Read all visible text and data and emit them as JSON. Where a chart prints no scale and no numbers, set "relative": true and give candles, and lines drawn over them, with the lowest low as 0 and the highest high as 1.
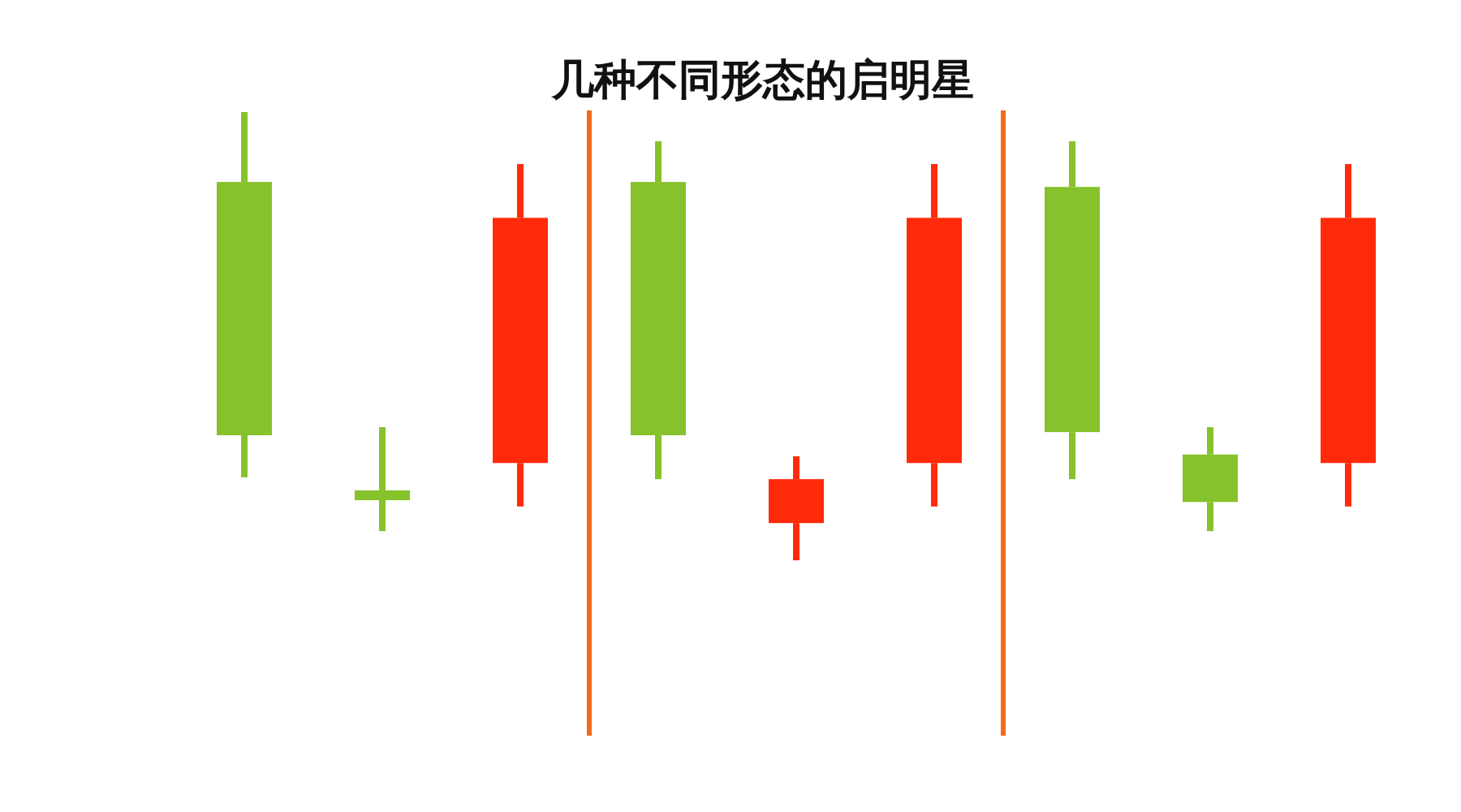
{
  "chart_data": {
    "type": "candlestick",
    "title": "几种不同形态的启明星",
    "relative": true,
    "categories": [
      null,
      null,
      null,
      null,
      null,
      null,
      null,
      null,
      null
    ],
    "ohlc": [
      [
        0.844,
        1,
        0.185,
        0.279
      ],
      [
        0.156,
        0.297,
        0.065,
        0.134
      ],
      [
        0.217,
        0.884,
        0.12,
        0.764
      ],
      [
        0.844,
        0.935,
        0.181,
        0.279
      ],
      [
        0.083,
        0.232,
        0,
        0.181
      ],
      [
        0.217,
        0.884,
        0.12,
        0.764
      ],
      [
        0.833,
        0.935,
        0.181,
        0.286
      ],
      [
        0.236,
        0.297,
        0.065,
        0.13
      ],
      [
        0.217,
        0.884,
        0.12,
        0.764
      ]
    ],
    "colors": [
      "#86c22b",
      "#86c22b",
      "#ff2a0a",
      "#86c22b",
      "#ff2a0a",
      "#ff2a0a",
      "#86c22b",
      "#86c22b",
      "#ff2a0a"
    ]
  }
}
